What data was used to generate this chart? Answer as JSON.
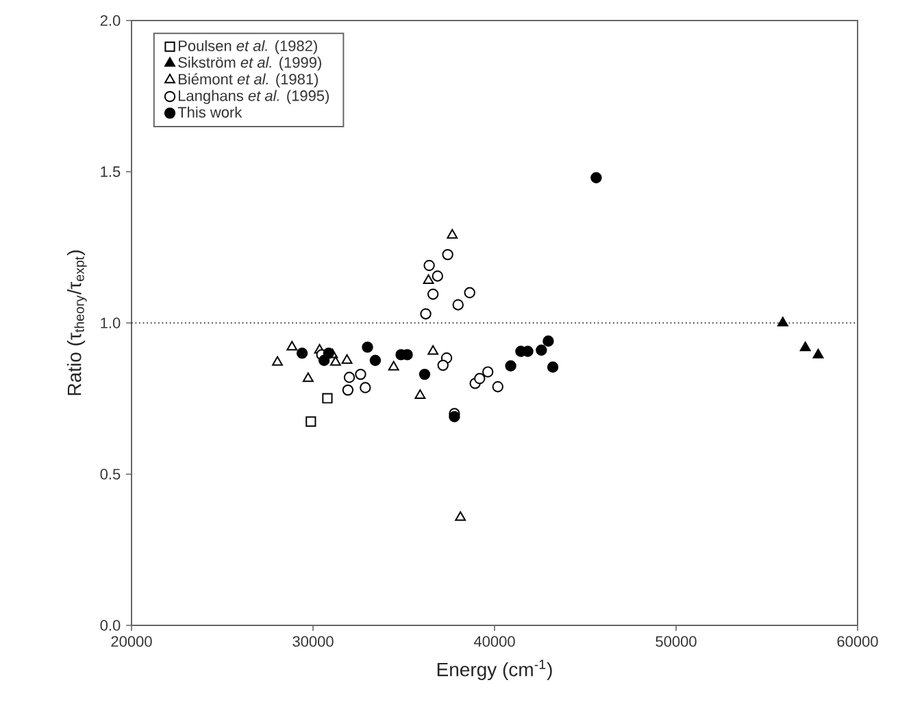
{
  "chart_data": {
    "type": "scatter",
    "xlabel": "Energy (cm$^{-1}$)",
    "ylabel": "Ratio (τ$_{theory}$/τ$_{expt}$)",
    "xlim": [
      20000,
      60000
    ],
    "xticks": [
      20000,
      30000,
      40000,
      50000,
      60000
    ],
    "ylim": [
      0,
      2
    ],
    "yticks": [
      {
        "value": 0,
        "label": "0.0"
      },
      {
        "value": 0.5,
        "label": "0.5"
      },
      {
        "value": 1,
        "label": "1.0"
      },
      {
        "value": 1.5,
        "label": "1.5"
      },
      {
        "value": 2,
        "label": "2.0"
      }
    ],
    "grid": false,
    "legend": "top left",
    "ref_lines": [
      {
        "axis": "y",
        "value": 1,
        "line_style": "dotted",
        "color": "#000000"
      }
    ],
    "series": [
      {
        "name": "Poulsen *et al.* (1982)",
        "marker": "square",
        "color": "#ffffff",
        "x": [
          29880,
          30790
        ],
        "values": [
          0.674,
          0.751
        ]
      },
      {
        "name": "Sikström *et al.* (1999)",
        "marker": "triangle",
        "color": "#000000",
        "x": [
          55880,
          57120,
          57830
        ],
        "values": [
          1.0,
          0.918,
          0.894
        ]
      },
      {
        "name": "Biémont *et al.* (1981)",
        "marker": "triangle",
        "color": "#ffffff",
        "x": [
          28040,
          28840,
          29730,
          30360,
          31070,
          31240,
          31870,
          34440,
          35900,
          36610,
          36360,
          37670,
          38120
        ],
        "values": [
          0.87,
          0.92,
          0.816,
          0.91,
          0.895,
          0.87,
          0.876,
          0.854,
          0.76,
          0.906,
          1.14,
          1.29,
          0.357
        ]
      },
      {
        "name": "Langhans *et al.* (1995)",
        "marker": "circle",
        "color": "#ffffff",
        "x": [
          36400,
          37420,
          36860,
          36610,
          38630,
          37990,
          36210,
          37360,
          37160,
          32000,
          32620,
          32880,
          31920,
          30480,
          38930,
          39180,
          39630,
          40180,
          37790
        ],
        "values": [
          1.19,
          1.226,
          1.155,
          1.095,
          1.1,
          1.06,
          1.03,
          0.884,
          0.86,
          0.82,
          0.83,
          0.786,
          0.778,
          0.895,
          0.8,
          0.816,
          0.838,
          0.789,
          0.7
        ]
      },
      {
        "name": "This work",
        "marker": "circle",
        "color": "#000000",
        "x": [
          29400,
          30610,
          30860,
          33000,
          33430,
          34850,
          35190,
          36150,
          37790,
          40890,
          41450,
          41830,
          42580,
          42960,
          43210,
          45600
        ],
        "values": [
          0.9,
          0.876,
          0.9,
          0.92,
          0.876,
          0.895,
          0.895,
          0.83,
          0.69,
          0.858,
          0.906,
          0.906,
          0.91,
          0.94,
          0.854,
          1.48
        ]
      }
    ]
  }
}
